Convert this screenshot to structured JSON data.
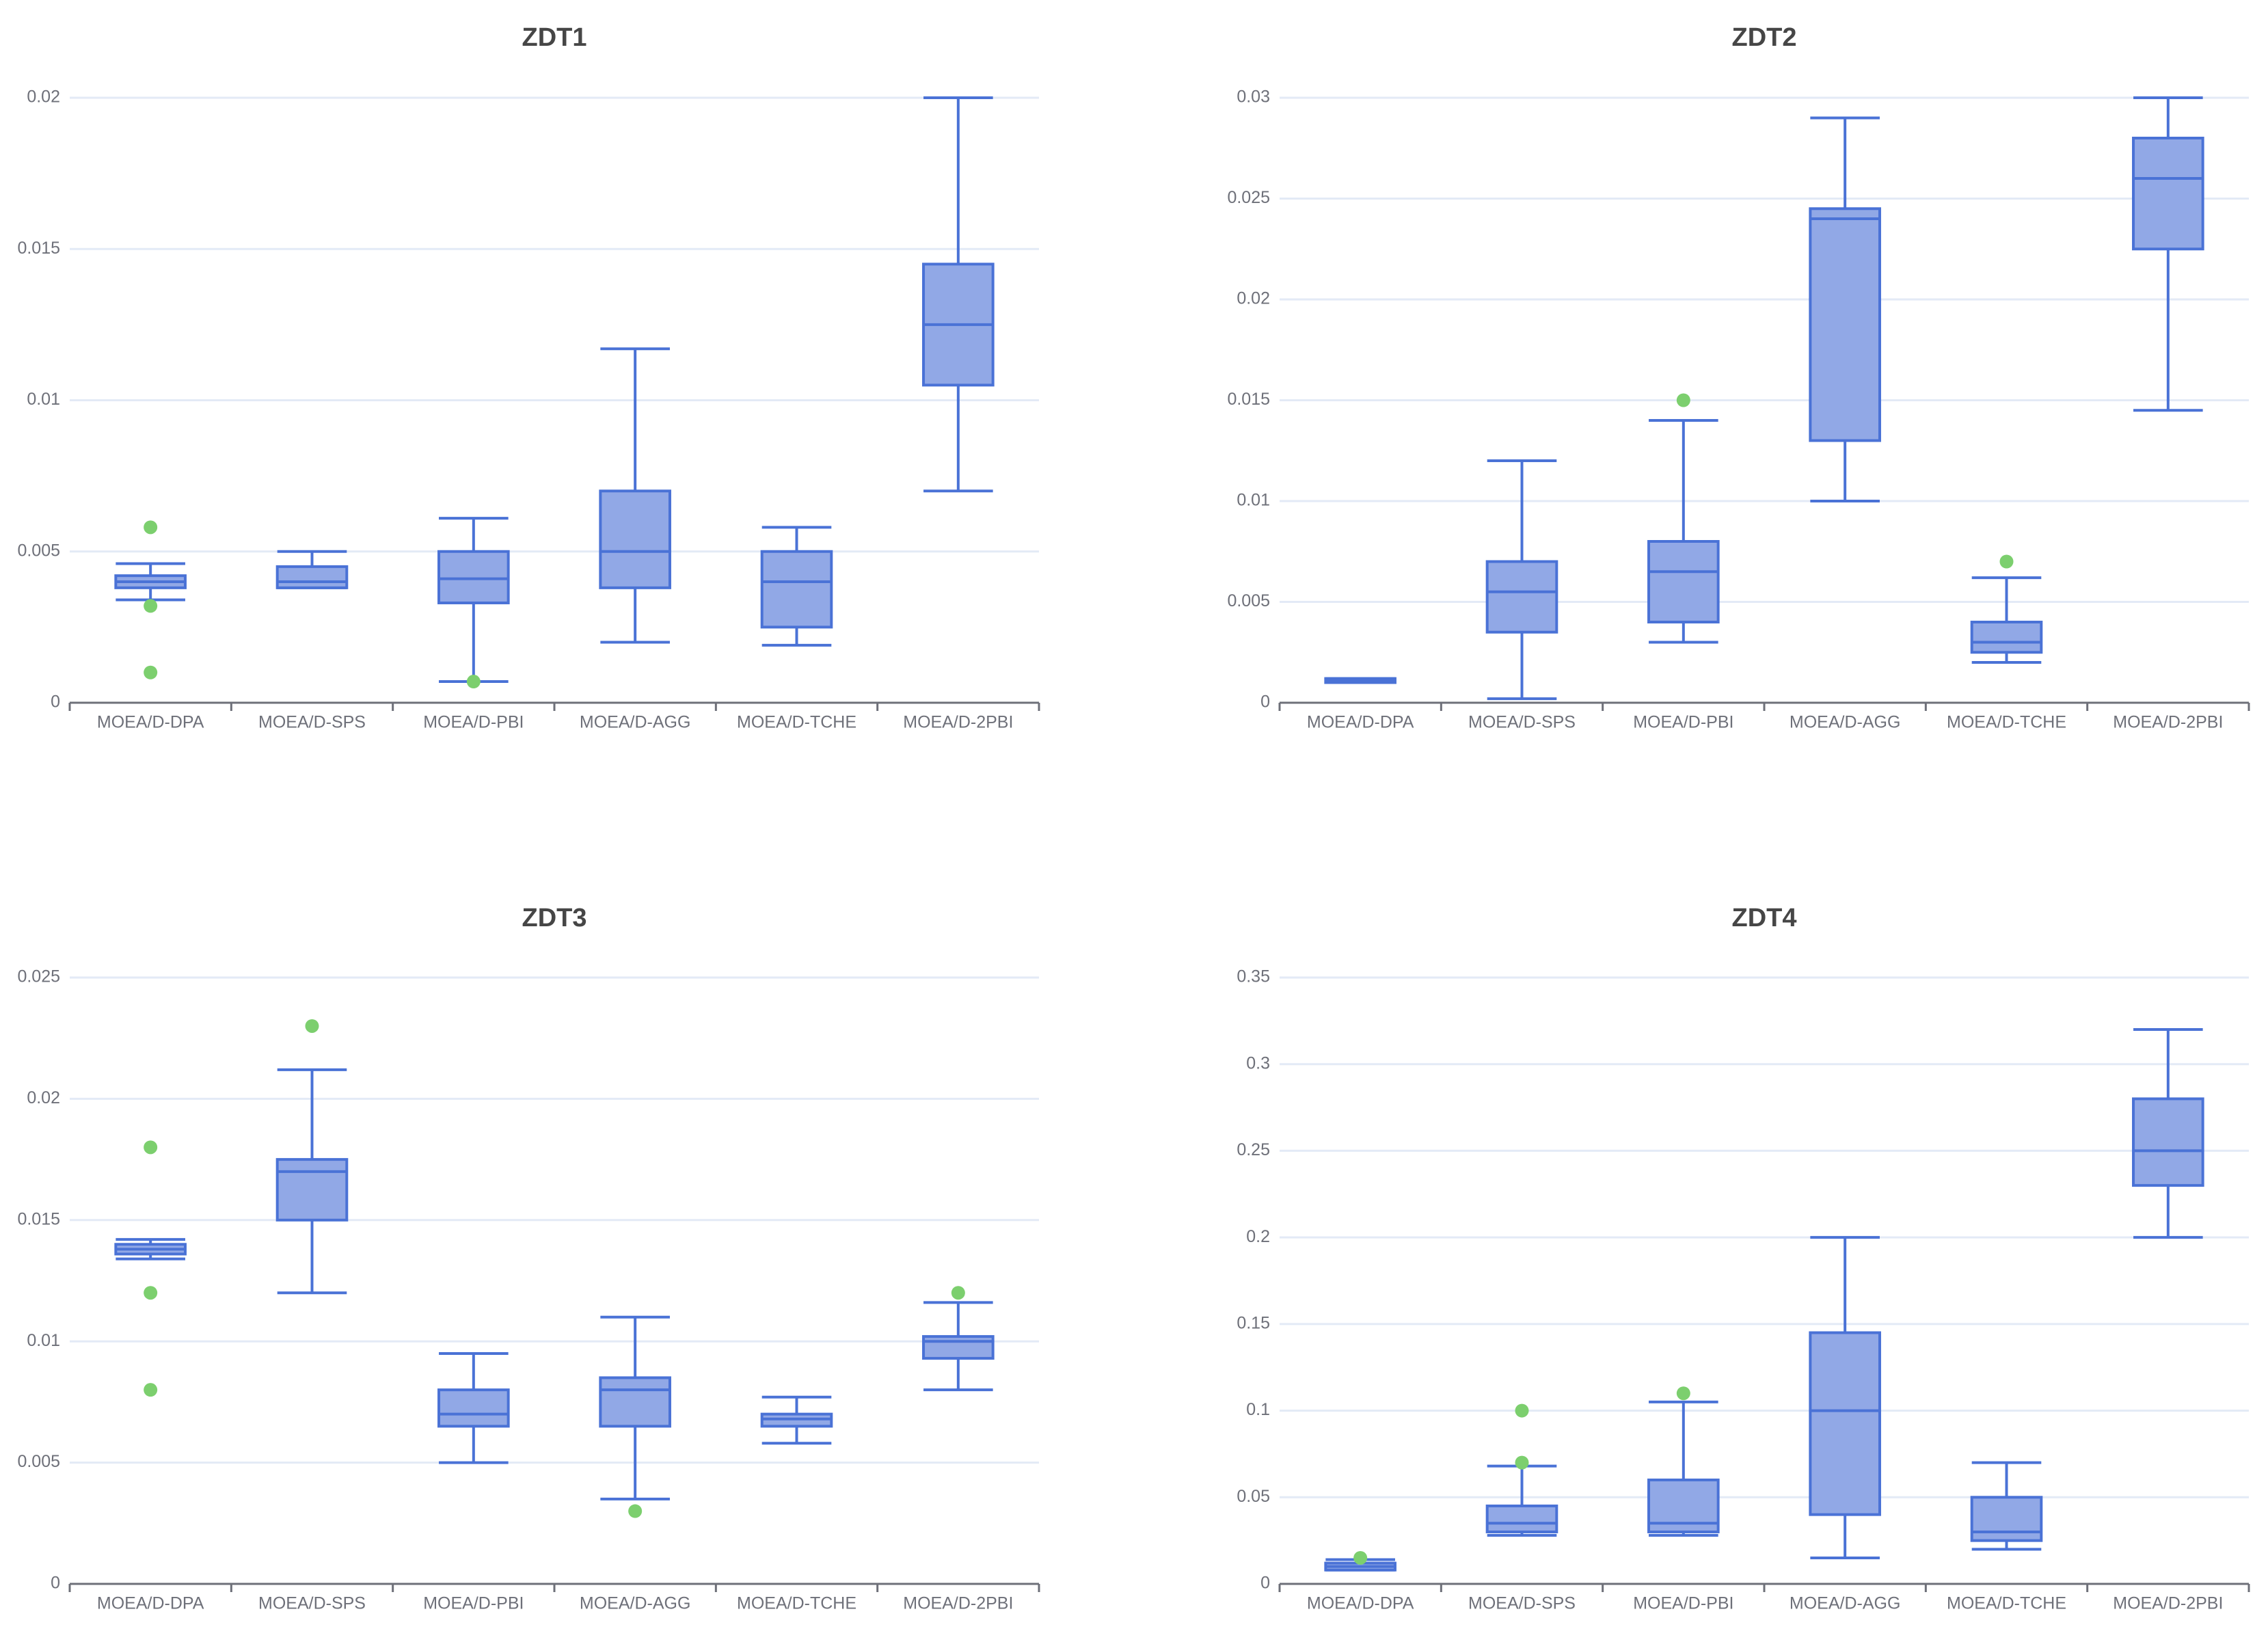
{
  "colors": {
    "box_fill": "#91a8e6",
    "box_stroke": "#4a72d6",
    "outlier": "#7ccf6e",
    "grid": "#e3eaf6",
    "axis": "#6e7079"
  },
  "chart_data": [
    {
      "type": "boxplot",
      "title": "ZDT1",
      "categories": [
        "MOEA/D-DPA",
        "MOEA/D-SPS",
        "MOEA/D-PBI",
        "MOEA/D-AGG",
        "MOEA/D-TCHE",
        "MOEA/D-2PBI"
      ],
      "y_ticks": [
        "0",
        "0.005",
        "0.01",
        "0.015",
        "0.02"
      ],
      "ylim": [
        0,
        0.02
      ],
      "boxes": [
        {
          "min": 0.0034,
          "q1": 0.0038,
          "median": 0.004,
          "q3": 0.0042,
          "max": 0.0046
        },
        {
          "min": 0.0038,
          "q1": 0.0038,
          "median": 0.004,
          "q3": 0.0045,
          "max": 0.005
        },
        {
          "min": 0.0007,
          "q1": 0.0033,
          "median": 0.0041,
          "q3": 0.005,
          "max": 0.0061
        },
        {
          "min": 0.002,
          "q1": 0.0038,
          "median": 0.005,
          "q3": 0.007,
          "max": 0.0117
        },
        {
          "min": 0.0019,
          "q1": 0.0025,
          "median": 0.004,
          "q3": 0.005,
          "max": 0.0058
        },
        {
          "min": 0.007,
          "q1": 0.0105,
          "median": 0.0125,
          "q3": 0.0145,
          "max": 0.02
        }
      ],
      "outliers": [
        [
          0,
          0.0058
        ],
        [
          0,
          0.0032
        ],
        [
          0,
          0.001
        ],
        [
          2,
          0.0007
        ]
      ]
    },
    {
      "type": "boxplot",
      "title": "ZDT2",
      "categories": [
        "MOEA/D-DPA",
        "MOEA/D-SPS",
        "MOEA/D-PBI",
        "MOEA/D-AGG",
        "MOEA/D-TCHE",
        "MOEA/D-2PBI"
      ],
      "y_ticks": [
        "0",
        "0.005",
        "0.01",
        "0.015",
        "0.02",
        "0.025",
        "0.03"
      ],
      "ylim": [
        0,
        0.03
      ],
      "boxes": [
        {
          "min": 0.001,
          "q1": 0.001,
          "median": 0.0011,
          "q3": 0.0012,
          "max": 0.0012
        },
        {
          "min": 0.0002,
          "q1": 0.0035,
          "median": 0.0055,
          "q3": 0.007,
          "max": 0.012
        },
        {
          "min": 0.003,
          "q1": 0.004,
          "median": 0.0065,
          "q3": 0.008,
          "max": 0.014
        },
        {
          "min": 0.01,
          "q1": 0.013,
          "median": 0.024,
          "q3": 0.0245,
          "max": 0.029
        },
        {
          "min": 0.002,
          "q1": 0.0025,
          "median": 0.003,
          "q3": 0.004,
          "max": 0.0062
        },
        {
          "min": 0.0145,
          "q1": 0.0225,
          "median": 0.026,
          "q3": 0.028,
          "max": 0.03
        }
      ],
      "outliers": [
        [
          2,
          0.015
        ],
        [
          4,
          0.007
        ]
      ]
    },
    {
      "type": "boxplot",
      "title": "ZDT3",
      "categories": [
        "MOEA/D-DPA",
        "MOEA/D-SPS",
        "MOEA/D-PBI",
        "MOEA/D-AGG",
        "MOEA/D-TCHE",
        "MOEA/D-2PBI"
      ],
      "y_ticks": [
        "0",
        "0.005",
        "0.01",
        "0.015",
        "0.02",
        "0.025"
      ],
      "ylim": [
        0,
        0.025
      ],
      "boxes": [
        {
          "min": 0.0134,
          "q1": 0.0136,
          "median": 0.0138,
          "q3": 0.014,
          "max": 0.0142
        },
        {
          "min": 0.012,
          "q1": 0.015,
          "median": 0.017,
          "q3": 0.0175,
          "max": 0.0212
        },
        {
          "min": 0.005,
          "q1": 0.0065,
          "median": 0.007,
          "q3": 0.008,
          "max": 0.0095
        },
        {
          "min": 0.0035,
          "q1": 0.0065,
          "median": 0.008,
          "q3": 0.0085,
          "max": 0.011
        },
        {
          "min": 0.0058,
          "q1": 0.0065,
          "median": 0.0068,
          "q3": 0.007,
          "max": 0.0077
        },
        {
          "min": 0.008,
          "q1": 0.0093,
          "median": 0.01,
          "q3": 0.0102,
          "max": 0.0116
        }
      ],
      "outliers": [
        [
          0,
          0.018
        ],
        [
          0,
          0.012
        ],
        [
          0,
          0.008
        ],
        [
          1,
          0.023
        ],
        [
          3,
          0.003
        ],
        [
          5,
          0.012
        ]
      ]
    },
    {
      "type": "boxplot",
      "title": "ZDT4",
      "categories": [
        "MOEA/D-DPA",
        "MOEA/D-SPS",
        "MOEA/D-PBI",
        "MOEA/D-AGG",
        "MOEA/D-TCHE",
        "MOEA/D-2PBI"
      ],
      "y_ticks": [
        "0",
        "0.05",
        "0.1",
        "0.15",
        "0.2",
        "0.25",
        "0.3",
        "0.35"
      ],
      "ylim": [
        0,
        0.35
      ],
      "boxes": [
        {
          "min": 0.008,
          "q1": 0.008,
          "median": 0.01,
          "q3": 0.012,
          "max": 0.014
        },
        {
          "min": 0.028,
          "q1": 0.03,
          "median": 0.035,
          "q3": 0.045,
          "max": 0.068
        },
        {
          "min": 0.028,
          "q1": 0.03,
          "median": 0.035,
          "q3": 0.06,
          "max": 0.105
        },
        {
          "min": 0.015,
          "q1": 0.04,
          "median": 0.1,
          "q3": 0.145,
          "max": 0.2
        },
        {
          "min": 0.02,
          "q1": 0.025,
          "median": 0.03,
          "q3": 0.05,
          "max": 0.07
        },
        {
          "min": 0.2,
          "q1": 0.23,
          "median": 0.25,
          "q3": 0.28,
          "max": 0.32
        }
      ],
      "outliers": [
        [
          0,
          0.015
        ],
        [
          1,
          0.1
        ],
        [
          1,
          0.07
        ],
        [
          2,
          0.11
        ]
      ]
    }
  ]
}
